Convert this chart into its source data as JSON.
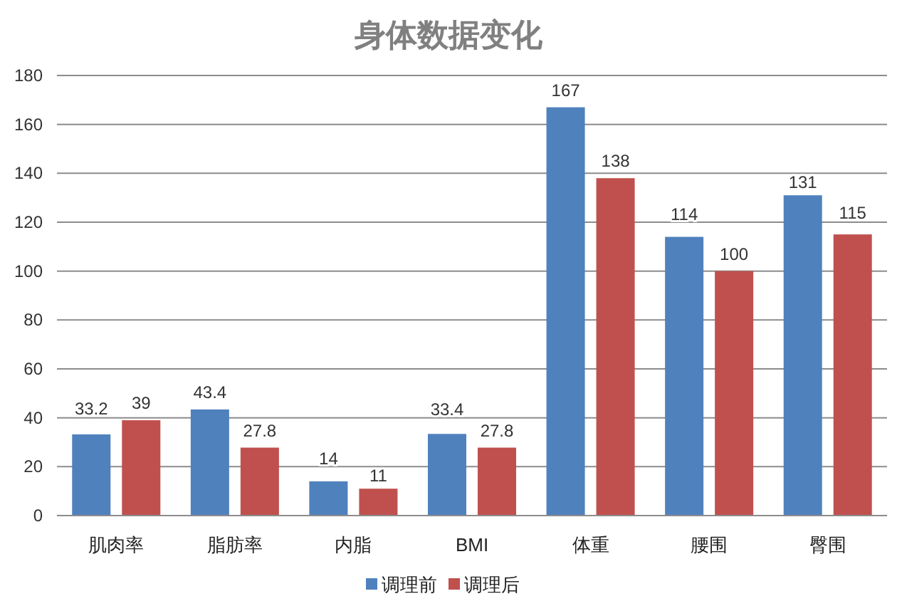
{
  "chart_data": {
    "type": "bar",
    "title": "身体数据变化",
    "categories": [
      "肌肉率",
      "脂肪率",
      "内脂",
      "BMI",
      "体重",
      "腰围",
      "臀围"
    ],
    "series": [
      {
        "name": "调理前",
        "color": "#4f81bd",
        "values": [
          33.2,
          43.4,
          14,
          33.4,
          167,
          114,
          131
        ]
      },
      {
        "name": "调理后",
        "color": "#c0504d",
        "values": [
          39,
          27.8,
          11,
          27.8,
          138,
          100,
          115
        ]
      }
    ],
    "ylim": [
      0,
      180
    ],
    "yticks": [
      0,
      20,
      40,
      60,
      80,
      100,
      120,
      140,
      160,
      180
    ],
    "grid": "y",
    "legend": "bottom",
    "data_labels": true
  }
}
